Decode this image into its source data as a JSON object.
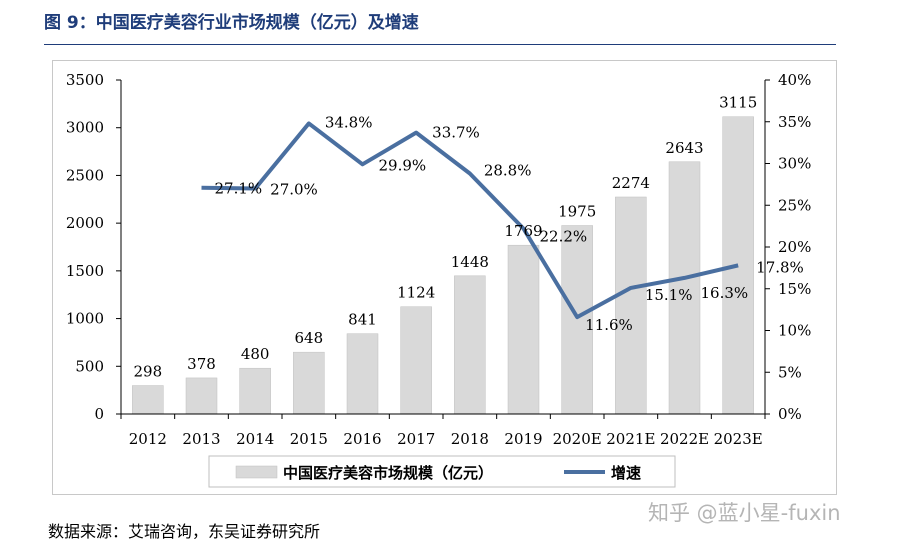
{
  "figure": {
    "title": "图 9：中国医疗美容行业市场规模（亿元）及增速",
    "source": "数据来源：艾瑞咨询，东吴证券研究所",
    "watermark": "知乎 @蓝小星-fuxin"
  },
  "colors": {
    "bar": "#d9d9d9",
    "bar_edge": "#bfbfbf",
    "line": "#4a6fa0",
    "title": "#1f3d7a"
  },
  "chart_data": {
    "type": "bar",
    "title": "",
    "categories": [
      "2012",
      "2013",
      "2014",
      "2015",
      "2016",
      "2017",
      "2018",
      "2019",
      "2020E",
      "2021E",
      "2022E",
      "2023E"
    ],
    "series": [
      {
        "name": "中国医疗美容市场规模（亿元）",
        "type": "bar",
        "axis": "left",
        "values": [
          298,
          378,
          480,
          648,
          841,
          1124,
          1448,
          1769,
          1975,
          2274,
          2643,
          3115
        ],
        "labels": [
          "298",
          "378",
          "480",
          "648",
          "841",
          "1124",
          "1448",
          "1769",
          "1975",
          "2274",
          "2643",
          "3115"
        ]
      },
      {
        "name": "增速",
        "type": "line",
        "axis": "right",
        "values": [
          null,
          27.1,
          27.0,
          34.8,
          29.9,
          33.7,
          28.8,
          22.2,
          11.6,
          15.1,
          16.3,
          17.8
        ],
        "labels": [
          "",
          "27.1%",
          "27.0%",
          "34.8%",
          "29.9%",
          "33.7%",
          "28.8%",
          "22.2%",
          "11.6%",
          "15.1%",
          "16.3%",
          "17.8%"
        ]
      }
    ],
    "ylim": [
      0,
      3500
    ],
    "y_ticks": [
      0,
      500,
      1000,
      1500,
      2000,
      2500,
      3000,
      3500
    ],
    "y_tick_labels": [
      "0",
      "500",
      "1000",
      "1500",
      "2000",
      "2500",
      "3000",
      "3500"
    ],
    "y2lim": [
      0,
      40
    ],
    "y2_ticks": [
      0,
      5,
      10,
      15,
      20,
      25,
      30,
      35,
      40
    ],
    "y2_tick_labels": [
      "0%",
      "5%",
      "10%",
      "15%",
      "20%",
      "25%",
      "30%",
      "35%",
      "40%"
    ],
    "legend": [
      "中国医疗美容市场规模（亿元）",
      "增速"
    ],
    "legend_position": "bottom",
    "grid": false
  }
}
